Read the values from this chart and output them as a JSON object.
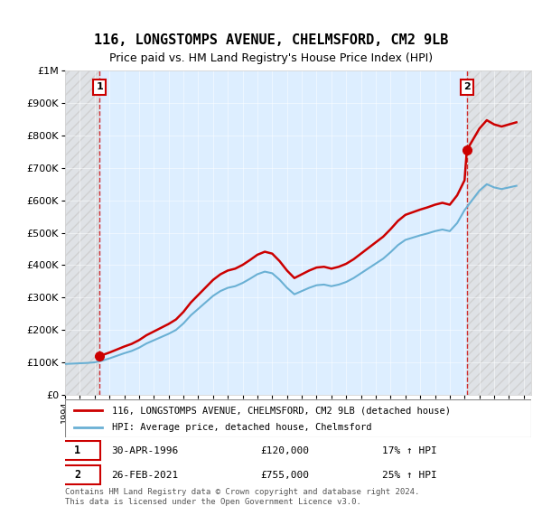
{
  "title": "116, LONGSTOMPS AVENUE, CHELMSFORD, CM2 9LB",
  "subtitle": "Price paid vs. HM Land Registry's House Price Index (HPI)",
  "sale1_date": "30-APR-1996",
  "sale1_price": 120000,
  "sale1_hpi": "17% ↑ HPI",
  "sale1_label": "1",
  "sale2_date": "26-FEB-2021",
  "sale2_price": 755000,
  "sale2_hpi": "25% ↑ HPI",
  "sale2_label": "2",
  "legend_line1": "116, LONGSTOMPS AVENUE, CHELMSFORD, CM2 9LB (detached house)",
  "legend_line2": "HPI: Average price, detached house, Chelmsford",
  "footer": "Contains HM Land Registry data © Crown copyright and database right 2024.\nThis data is licensed under the Open Government Licence v3.0.",
  "hpi_color": "#6ab0d4",
  "price_color": "#cc0000",
  "dashed_color": "#cc0000",
  "background_plot": "#ddeeff",
  "background_hatch": "#e8e8e8",
  "ylim": [
    0,
    1000000
  ],
  "yticks": [
    0,
    100000,
    200000,
    300000,
    400000,
    500000,
    600000,
    700000,
    800000,
    900000,
    1000000
  ],
  "ytick_labels": [
    "£0",
    "£100K",
    "£200K",
    "£300K",
    "£400K",
    "£500K",
    "£600K",
    "£700K",
    "£800K",
    "£900K",
    "£1M"
  ],
  "sale1_x": 1996.33,
  "sale2_x": 2021.15
}
